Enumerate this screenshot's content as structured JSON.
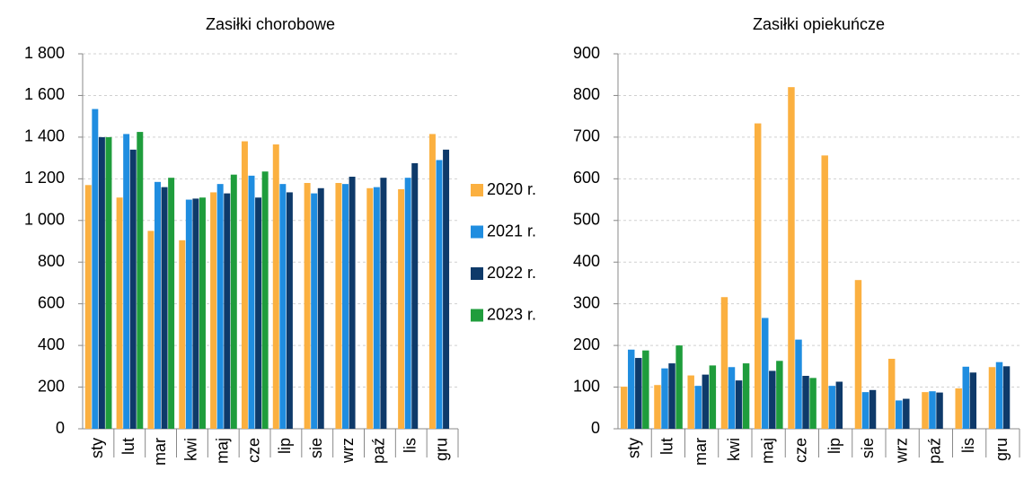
{
  "chart_data": [
    {
      "type": "bar",
      "title": "Zasiłki chorobowe",
      "categories": [
        "sty",
        "lut",
        "mar",
        "kwi",
        "maj",
        "cze",
        "lip",
        "sie",
        "wrz",
        "paź",
        "lis",
        "gru"
      ],
      "series": [
        {
          "name": "2020 r.",
          "color": "#fbb040",
          "values": [
            1170,
            1110,
            950,
            905,
            1135,
            1380,
            1365,
            1180,
            1180,
            1155,
            1150,
            1415
          ]
        },
        {
          "name": "2021 r.",
          "color": "#1f8de0",
          "values": [
            1535,
            1415,
            1185,
            1100,
            1175,
            1215,
            1175,
            1130,
            1175,
            1160,
            1205,
            1290
          ]
        },
        {
          "name": "2022 r.",
          "color": "#0e3a6a",
          "values": [
            1400,
            1340,
            1160,
            1105,
            1130,
            1110,
            1135,
            1155,
            1210,
            1205,
            1275,
            1340
          ]
        },
        {
          "name": "2023 r.",
          "color": "#1f9d3c",
          "values": [
            1400,
            1425,
            1205,
            1110,
            1220,
            1235,
            null,
            null,
            null,
            null,
            null,
            null
          ]
        }
      ],
      "ylim": [
        0,
        1800
      ],
      "yticks": [
        0,
        200,
        400,
        600,
        800,
        {
          "value": 1000,
          "label": "1 000"
        },
        {
          "value": 1200,
          "label": "1 200"
        },
        {
          "value": 1400,
          "label": "1 400"
        },
        {
          "value": 1600,
          "label": "1 600"
        },
        {
          "value": 1800,
          "label": "1 800"
        }
      ],
      "grid": true
    },
    {
      "type": "bar",
      "title": "Zasiłki opiekuńcze",
      "categories": [
        "sty",
        "lut",
        "mar",
        "kwi",
        "maj",
        "cze",
        "lip",
        "sie",
        "wrz",
        "paź",
        "lis",
        "gru"
      ],
      "series": [
        {
          "color": "#fbb040",
          "values": [
            101,
            105,
            128,
            316,
            733,
            820,
            656,
            357,
            168,
            88,
            97,
            148
          ]
        },
        {
          "color": "#1f8de0",
          "values": [
            190,
            145,
            103,
            148,
            266,
            214,
            103,
            88,
            68,
            90,
            149,
            160
          ]
        },
        {
          "color": "#0e3a6a",
          "values": [
            170,
            157,
            130,
            116,
            139,
            127,
            113,
            93,
            72,
            87,
            135,
            150
          ]
        },
        {
          "color": "#1f9d3c",
          "values": [
            188,
            200,
            152,
            157,
            163,
            122,
            null,
            null,
            null,
            null,
            null,
            null
          ]
        }
      ],
      "ylim": [
        0,
        900
      ],
      "yticks": [
        0,
        100,
        200,
        300,
        400,
        500,
        600,
        700,
        800,
        900
      ],
      "grid": true
    }
  ]
}
